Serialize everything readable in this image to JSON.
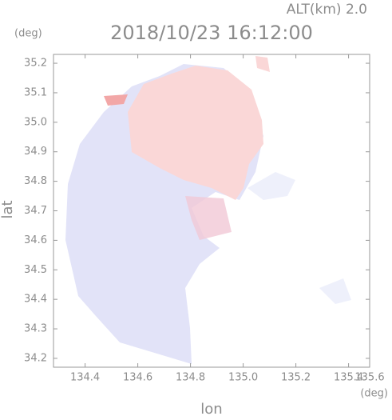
{
  "chart_data": {
    "type": "map",
    "title": "2018/10/23 16:12:00",
    "subtitle": "ALT(km) 2.0",
    "y_unit": "(deg)",
    "x_unit": "(deg)",
    "xlabel": "lon",
    "ylabel": "lat",
    "xlim": [
      134.28,
      135.48
    ],
    "ylim": [
      34.17,
      35.23
    ],
    "xticks": [
      134.4,
      134.6,
      134.8,
      {
        "value": 135.0,
        "label": "135.0"
      },
      135.2,
      135.4,
      135.6
    ],
    "yticks": [
      34.2,
      34.3,
      34.4,
      34.5,
      34.6,
      34.7,
      34.8,
      34.9,
      {
        "value": 35.0,
        "label": "35.0"
      },
      35.1,
      35.2
    ]
  }
}
